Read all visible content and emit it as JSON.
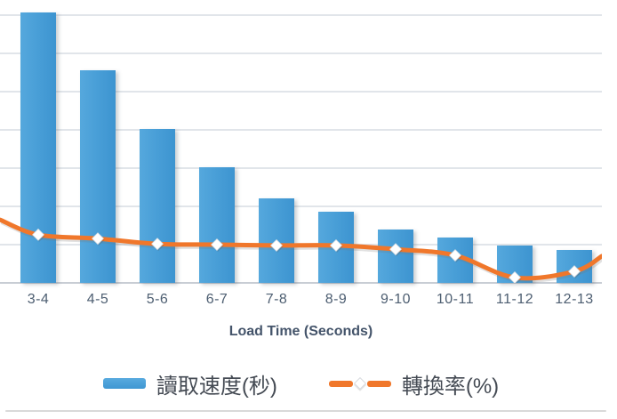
{
  "chart_data": {
    "type": "combo-bar-line",
    "title": "",
    "xlabel": "Load Time (Seconds)",
    "ylabel": "",
    "categories": [
      "3-4",
      "4-5",
      "5-6",
      "6-7",
      "7-8",
      "8-9",
      "9-10",
      "10-11",
      "11-12",
      "12-13"
    ],
    "series": [
      {
        "name": "讀取速度(秒)",
        "type": "bar",
        "color": "#479dd6",
        "values": [
          7.07,
          5.56,
          4.02,
          3.02,
          2.21,
          1.86,
          1.4,
          1.19,
          0.98,
          0.86
        ]
      },
      {
        "name": "轉換率(%)",
        "type": "line",
        "line_style": "smooth",
        "color": "#f0772b",
        "marker": "white-diamond",
        "values": [
          1.26,
          1.16,
          1.02,
          1.0,
          0.98,
          0.98,
          0.88,
          0.72,
          0.14,
          0.3
        ],
        "edge_start_value": 1.65,
        "edge_end_value": 0.7
      }
    ],
    "ylim": [
      0,
      7.4
    ],
    "gridline_step": 1,
    "grid": "horizontal",
    "y_axis_labels_visible": false,
    "legend_position": "bottom"
  },
  "colors": {
    "bar_blue": "#479dd6",
    "line_orange": "#f0772b",
    "gridline": "#e1e5ea",
    "baseline": "#c8cdd4",
    "tick_label": "#4d5e71",
    "axis_title": "#44546a",
    "legend_text": "#454b54",
    "divider": "#d9d9d9",
    "marker_fill": "#ffffff"
  }
}
